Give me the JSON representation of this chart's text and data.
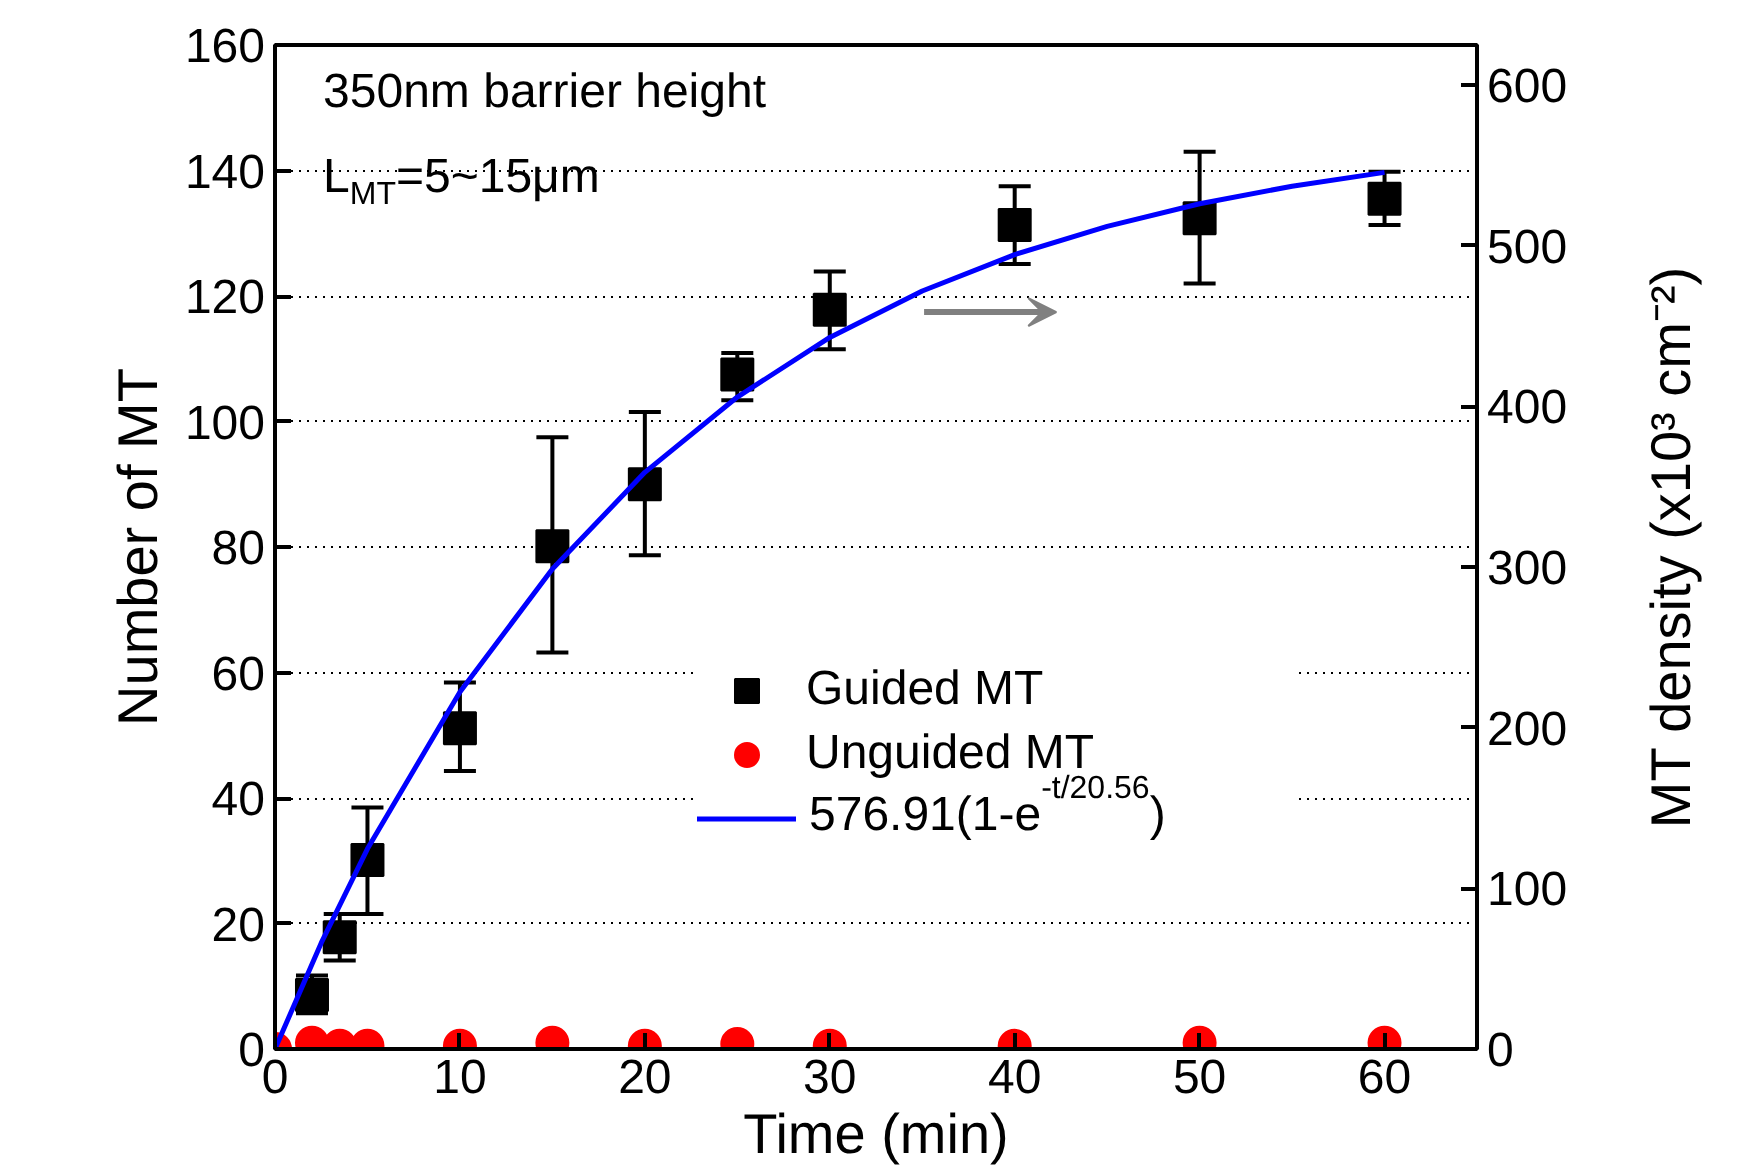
{
  "chart_data": {
    "type": "scatter",
    "xlabel": "Time (min)",
    "ylabel": "Number of MT",
    "y2label": "MT density (x10³ cm⁻²)",
    "annotations": [
      "350nm barrier height",
      "L$_{MT}$=5~15μm"
    ],
    "xlim": [
      0,
      65
    ],
    "xticks": [
      0,
      10,
      20,
      30,
      40,
      50,
      60
    ],
    "ylim": [
      0,
      160
    ],
    "yticks": [
      0,
      20,
      40,
      60,
      80,
      100,
      120,
      140,
      160
    ],
    "y2lim": [
      0,
      625
    ],
    "y2ticks": [
      0,
      100,
      200,
      300,
      400,
      500,
      600
    ],
    "grid": "y",
    "legend": "right",
    "series": [
      {
        "name": "Guided MT",
        "marker": "square",
        "color": "#000000",
        "x": [
          2,
          3.5,
          5,
          10,
          15,
          20,
          25,
          30,
          40,
          50,
          60
        ],
        "values": [
          8.6,
          17.8,
          30.1,
          51.1,
          80.1,
          90,
          107.5,
          117.8,
          131.3,
          132.4,
          135.5
        ],
        "errors": [
          [
            5.7,
            11.7
          ],
          [
            14.1,
            21.5
          ],
          [
            21.5,
            38.5
          ],
          [
            44.3,
            58.4
          ],
          [
            63.2,
            97.5
          ],
          [
            78.7,
            101.5
          ],
          [
            103.4,
            110.9
          ],
          [
            111.5,
            123.9
          ],
          [
            125.1,
            137.5
          ],
          [
            122,
            143
          ],
          [
            131.3,
            139.8
          ]
        ]
      },
      {
        "name": "Unguided MT",
        "marker": "circle",
        "color": "#ff0000",
        "x": [
          0,
          2,
          3.5,
          5,
          10,
          15,
          20,
          25,
          30,
          40,
          50,
          60
        ],
        "values": [
          0,
          1,
          0.5,
          0.5,
          0.5,
          1,
          0.5,
          0.8,
          0.5,
          0.5,
          1,
          1
        ]
      },
      {
        "name": "576.91(1-e$^{-t/20.56}$)",
        "type": "line",
        "marker": "none",
        "line_style": "solid",
        "color": "#0000ff",
        "x": [
          0,
          2.5,
          5,
          10,
          15,
          20,
          25,
          30,
          35,
          40,
          45,
          50,
          55,
          60
        ],
        "values": [
          0,
          16.9,
          31.9,
          56.9,
          76.5,
          91.9,
          103.9,
          113.4,
          120.8,
          126.6,
          131.1,
          134.7,
          137.5,
          139.7
        ]
      }
    ]
  }
}
